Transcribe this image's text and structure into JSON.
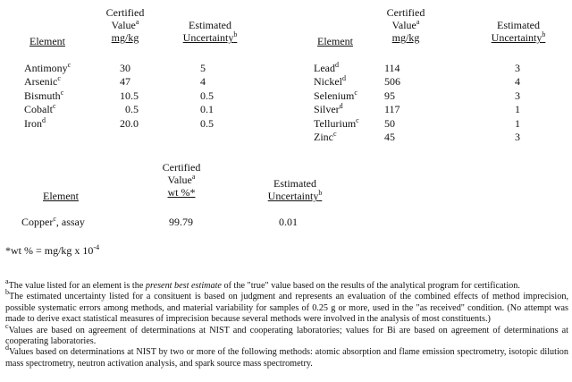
{
  "left_table": {
    "headers": {
      "element": "Element",
      "certified_line1": "Certified",
      "certified_line2": "Value",
      "certified_sup": "a",
      "certified_unit": "mg/kg",
      "estimated_line1": "Estimated",
      "estimated_line2": "Uncertainty",
      "estimated_sup": "b"
    },
    "rows": [
      {
        "element": "Antimony",
        "sup": "c",
        "value": "30",
        "uncertainty": "5"
      },
      {
        "element": "Arsenic",
        "sup": "c",
        "value": "47",
        "uncertainty": "4"
      },
      {
        "element": "Bismuth",
        "sup": "c",
        "value": "10.5",
        "uncertainty": "0.5"
      },
      {
        "element": "Cobalt",
        "sup": "c",
        "value": "0.5",
        "uncertainty": "0.1"
      },
      {
        "element": "Iron",
        "sup": "d",
        "value": "20.0",
        "uncertainty": "0.5"
      }
    ]
  },
  "right_table": {
    "headers": {
      "element": "Element",
      "certified_line1": "Certified",
      "certified_line2": "Value",
      "certified_sup": "a",
      "certified_unit": "mg/kg",
      "estimated_line1": "Estimated",
      "estimated_line2": "Uncertainty",
      "estimated_sup": "b"
    },
    "rows": [
      {
        "element": "Lead",
        "sup": "d",
        "value": "114",
        "uncertainty": "3"
      },
      {
        "element": "Nickel",
        "sup": "d",
        "value": "506",
        "uncertainty": "4"
      },
      {
        "element": "Selenium",
        "sup": "c",
        "value": "95",
        "uncertainty": "3"
      },
      {
        "element": "Silver",
        "sup": "d",
        "value": "117",
        "uncertainty": "1"
      },
      {
        "element": "Tellurium",
        "sup": "c",
        "value": "50",
        "uncertainty": "1"
      },
      {
        "element": "Zinc",
        "sup": "c",
        "value": "45",
        "uncertainty": "3"
      }
    ]
  },
  "copper_table": {
    "headers": {
      "element": "Element",
      "certified_line1": "Certified",
      "certified_line2": "Value",
      "certified_sup": "a",
      "certified_unit": "wt %*",
      "estimated_line1": "Estimated",
      "estimated_line2": "Uncertainty",
      "estimated_sup": "b"
    },
    "row": {
      "element": "Copper",
      "sup": "c",
      "element_suffix": ", assay",
      "value": "99.79",
      "uncertainty": "0.01"
    }
  },
  "conversion_note": {
    "text": "*wt % = mg/kg x 10",
    "exponent": "-4"
  },
  "footnotes": [
    {
      "mark": "a",
      "pre": "The value listed for an element is the ",
      "italic": "present best estimate",
      "post": " of the \"true\" value based on the results of the analytical program for certification."
    },
    {
      "mark": "b",
      "text": "The estimated uncertainty listed for a consituent is based on judgment and represents an evaluation of the combined effects of method imprecision, possible systematic errors among methods, and material variability for samples of 0.25 g or more, used in the \"as received\" condition.  (No attempt was made to derive exact statistical measures of imprecision because several methods were involved in the analysis of most constituents.)"
    },
    {
      "mark": "c",
      "text": "Values are based on agreement of determinations at NIST and cooperating laboratories; values for Bi are based on agreement of determinations at cooperating laboratories."
    },
    {
      "mark": "d",
      "text": "Values based on determinations at NIST by two or more of the following methods:  atomic absorption and flame emission spectrometry, isotopic dilution mass spectrometry, neutron activation analysis, and spark source mass spectrometry."
    }
  ]
}
